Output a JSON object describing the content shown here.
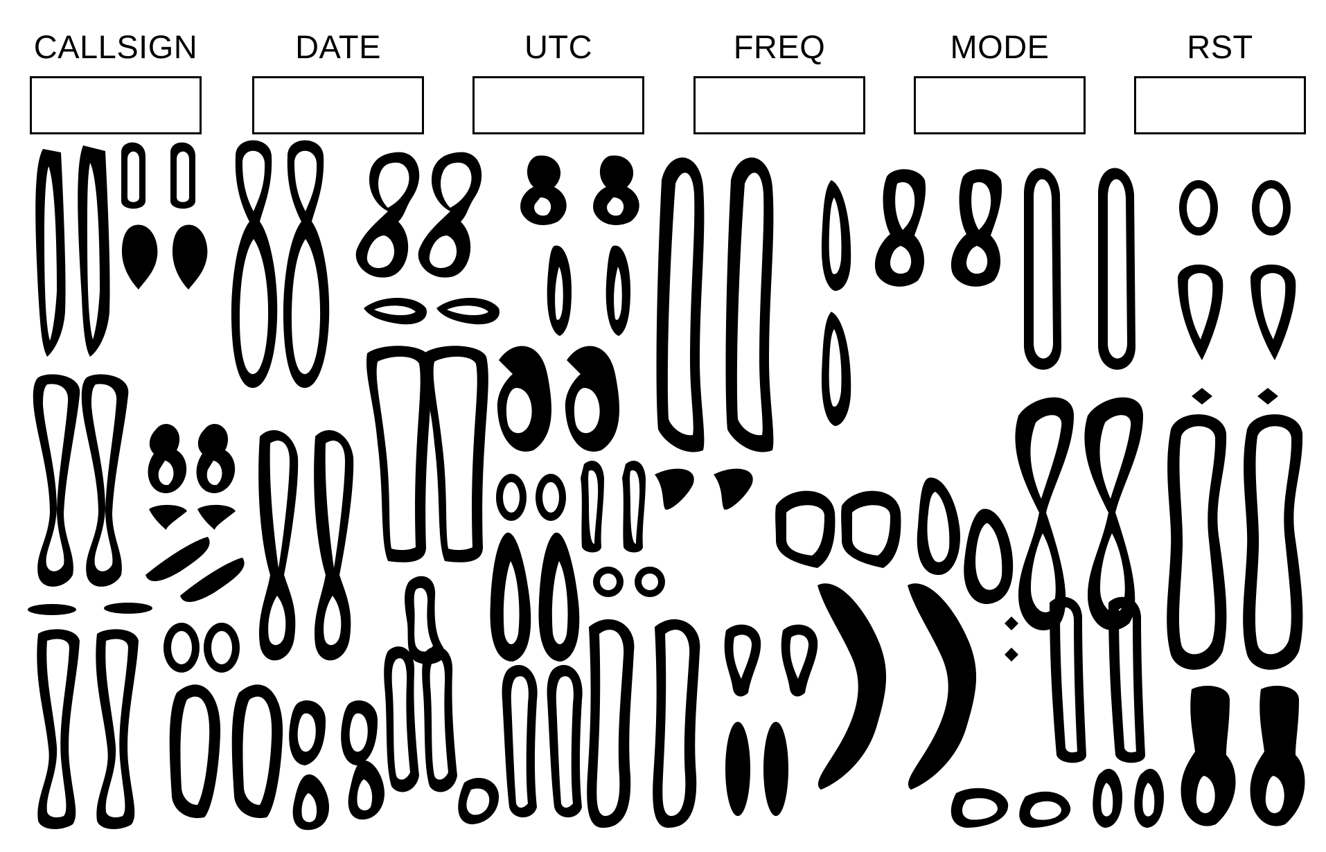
{
  "fields": [
    {
      "label": "CALLSIGN",
      "value": ""
    },
    {
      "label": "DATE",
      "value": ""
    },
    {
      "label": "UTC",
      "value": ""
    },
    {
      "label": "FREQ",
      "value": ""
    },
    {
      "label": "MODE",
      "value": ""
    },
    {
      "label": "RST",
      "value": ""
    }
  ]
}
